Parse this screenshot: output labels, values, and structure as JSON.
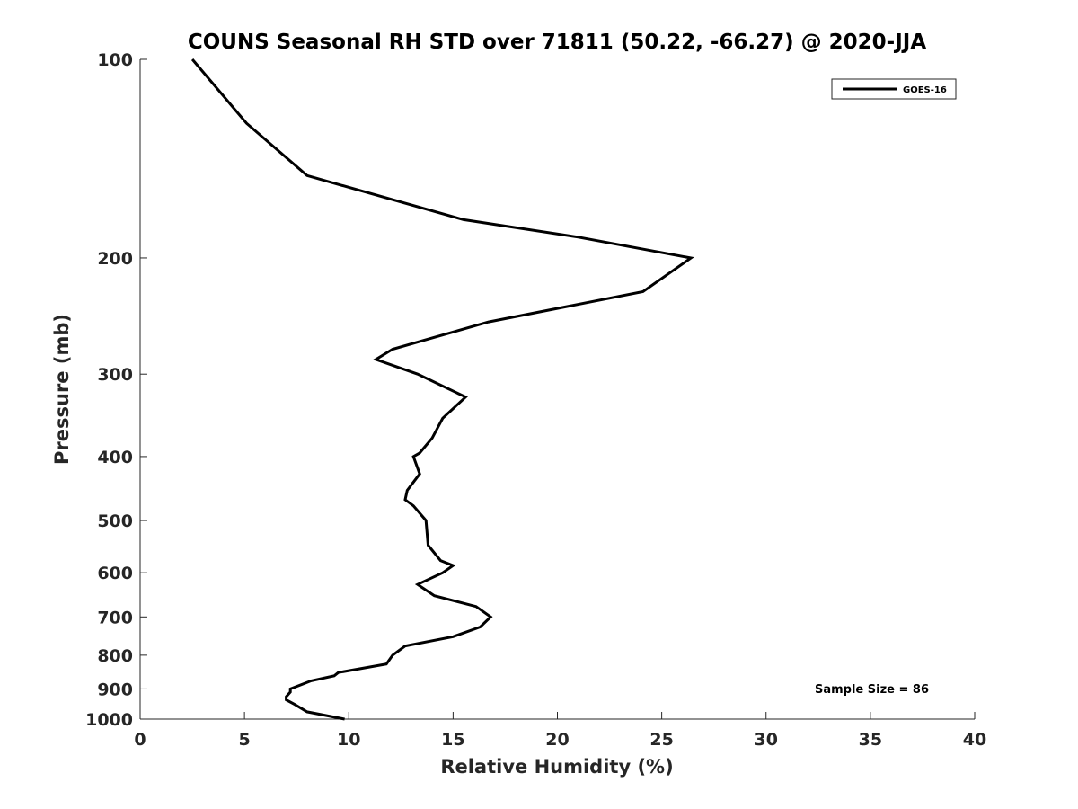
{
  "chart_data": {
    "type": "line",
    "title": "COUNS Seasonal RH STD over 71811 (50.22, -66.27) @ 2020-JJA",
    "xlabel": "Relative Humidity (%)",
    "ylabel": "Pressure (mb)",
    "xlim": [
      0,
      40
    ],
    "ylim": [
      100,
      1000
    ],
    "y_scale": "log",
    "y_reversed": true,
    "grid": false,
    "legend_position": "top-right",
    "x_ticks": [
      0,
      5,
      10,
      15,
      20,
      25,
      30,
      35,
      40
    ],
    "x_tick_labels": [
      "0",
      "5",
      "10",
      "15",
      "20",
      "25",
      "30",
      "35",
      "40"
    ],
    "y_ticks": [
      100,
      200,
      300,
      400,
      500,
      600,
      700,
      800,
      900,
      1000
    ],
    "y_tick_labels": [
      "100",
      "200",
      "300",
      "400",
      "500",
      "600",
      "700",
      "800",
      "900",
      "1000"
    ],
    "series": [
      {
        "name": "GOES-16",
        "color": "#000000",
        "points": [
          [
            2.5,
            100
          ],
          [
            5.1,
            125
          ],
          [
            8.0,
            150
          ],
          [
            15.5,
            175
          ],
          [
            21.0,
            186
          ],
          [
            26.4,
            200
          ],
          [
            24.1,
            225
          ],
          [
            16.7,
            250
          ],
          [
            12.1,
            275
          ],
          [
            11.3,
            285
          ],
          [
            13.3,
            300
          ],
          [
            15.6,
            325
          ],
          [
            14.5,
            350
          ],
          [
            14.0,
            375
          ],
          [
            13.4,
            395
          ],
          [
            13.1,
            400
          ],
          [
            13.4,
            425
          ],
          [
            12.8,
            450
          ],
          [
            12.7,
            465
          ],
          [
            13.1,
            475
          ],
          [
            13.7,
            500
          ],
          [
            13.8,
            545
          ],
          [
            14.4,
            575
          ],
          [
            15.0,
            585
          ],
          [
            14.5,
            600
          ],
          [
            13.3,
            625
          ],
          [
            14.1,
            650
          ],
          [
            16.1,
            675
          ],
          [
            16.8,
            700
          ],
          [
            16.3,
            725
          ],
          [
            15.0,
            750
          ],
          [
            12.7,
            775
          ],
          [
            12.1,
            800
          ],
          [
            11.8,
            825
          ],
          [
            9.5,
            850
          ],
          [
            9.3,
            860
          ],
          [
            8.2,
            875
          ],
          [
            7.2,
            900
          ],
          [
            7.2,
            910
          ],
          [
            7.0,
            925
          ],
          [
            7.0,
            935
          ],
          [
            7.4,
            950
          ],
          [
            8.0,
            975
          ],
          [
            9.8,
            1000
          ]
        ]
      }
    ],
    "annotation": "Sample Size = 86"
  }
}
